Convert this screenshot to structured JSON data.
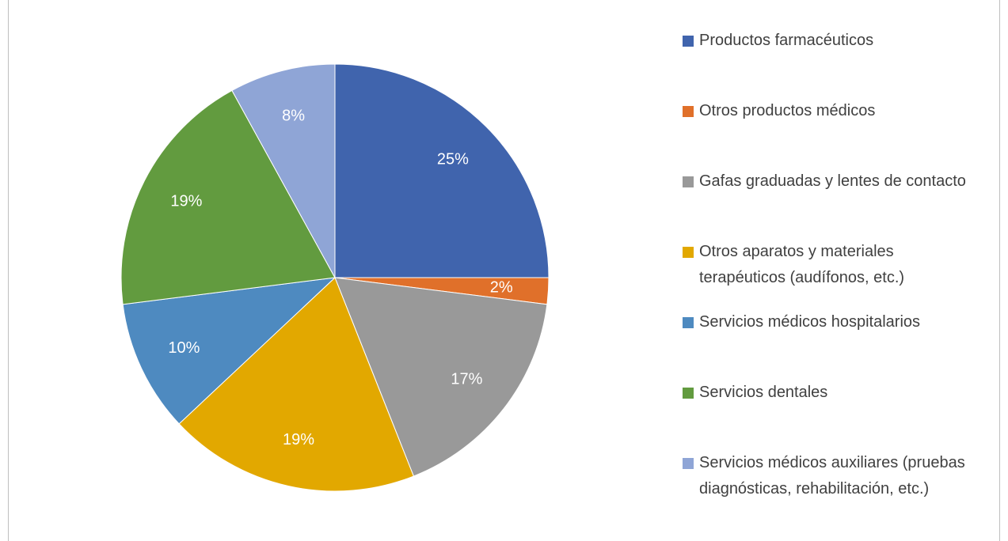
{
  "chart_data": {
    "type": "pie",
    "categories": [
      "Productos farmacéuticos",
      "Otros productos médicos",
      "Gafas graduadas y lentes de contacto",
      "Otros aparatos y materiales terapéuticos (audífonos, etc.)",
      "Servicios médicos hospitalarios",
      "Servicios dentales",
      "Servicios médicos auxiliares (pruebas diagnósticas, rehabilitación, etc.)"
    ],
    "values": [
      25,
      2,
      17,
      19,
      10,
      19,
      8
    ],
    "value_labels": [
      "25%",
      "2%",
      "17%",
      "19%",
      "10%",
      "19%",
      "8%"
    ],
    "colors": [
      "#4064ad",
      "#e0702a",
      "#999999",
      "#e2a800",
      "#4e8ac0",
      "#629b3f",
      "#8fa5d6"
    ],
    "legend": "right"
  }
}
